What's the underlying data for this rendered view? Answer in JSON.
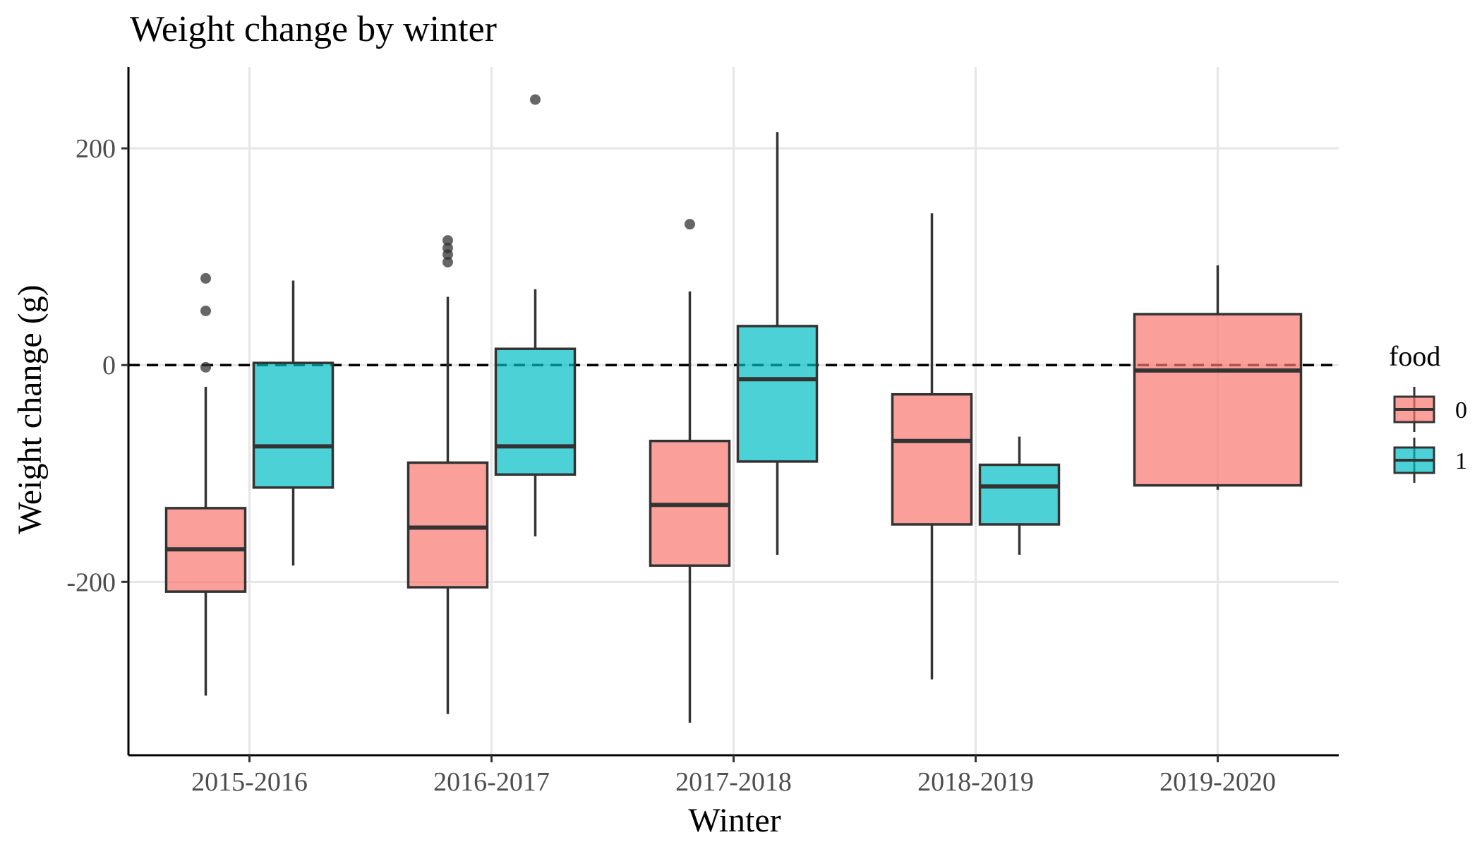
{
  "chart_data": {
    "type": "boxplot",
    "title": "Weight change by winter",
    "xlabel": "Winter",
    "ylabel": "Weight change (g)",
    "ylim": [
      -360,
      275
    ],
    "yticks": [
      -200,
      0,
      200
    ],
    "ytick_labels": [
      "-200",
      "0",
      "200"
    ],
    "categories": [
      "2015-2016",
      "2016-2017",
      "2017-2018",
      "2018-2019",
      "2019-2020"
    ],
    "reference_line": {
      "y": 0,
      "style": "dashed",
      "color": "#000000"
    },
    "grid": true,
    "legend": {
      "title": "food",
      "position": "right",
      "entries": [
        {
          "label": "0",
          "color": "#F8766D"
        },
        {
          "label": "1",
          "color": "#00BFC4"
        }
      ]
    },
    "series": [
      {
        "group": "0",
        "color": "#F8766D",
        "boxes": [
          {
            "category": "2015-2016",
            "whisker_low": -305,
            "q1": -209,
            "median": -170,
            "q3": -132,
            "whisker_high": -20,
            "outliers": [
              80,
              50,
              -2
            ]
          },
          {
            "category": "2016-2017",
            "whisker_low": -322,
            "q1": -205,
            "median": -150,
            "q3": -90,
            "whisker_high": 63,
            "outliers": [
              115,
              108,
              102,
              95
            ]
          },
          {
            "category": "2017-2018",
            "whisker_low": -330,
            "q1": -185,
            "median": -129,
            "q3": -70,
            "whisker_high": 68,
            "outliers": [
              130
            ]
          },
          {
            "category": "2018-2019",
            "whisker_low": -290,
            "q1": -147,
            "median": -70,
            "q3": -27,
            "whisker_high": 140,
            "outliers": []
          },
          {
            "category": "2019-2020",
            "whisker_low": -115,
            "q1": -111,
            "median": -5,
            "q3": 47,
            "whisker_high": 92,
            "outliers": []
          }
        ]
      },
      {
        "group": "1",
        "color": "#00BFC4",
        "boxes": [
          {
            "category": "2015-2016",
            "whisker_low": -185,
            "q1": -113,
            "median": -75,
            "q3": 2,
            "whisker_high": 78,
            "outliers": []
          },
          {
            "category": "2016-2017",
            "whisker_low": -158,
            "q1": -101,
            "median": -75,
            "q3": 15,
            "whisker_high": 70,
            "outliers": [
              245
            ]
          },
          {
            "category": "2017-2018",
            "whisker_low": -175,
            "q1": -89,
            "median": -13,
            "q3": 36,
            "whisker_high": 215,
            "outliers": []
          },
          {
            "category": "2018-2019",
            "whisker_low": -175,
            "q1": -147,
            "median": -112,
            "q3": -92,
            "whisker_high": -66,
            "outliers": []
          }
        ]
      }
    ]
  }
}
